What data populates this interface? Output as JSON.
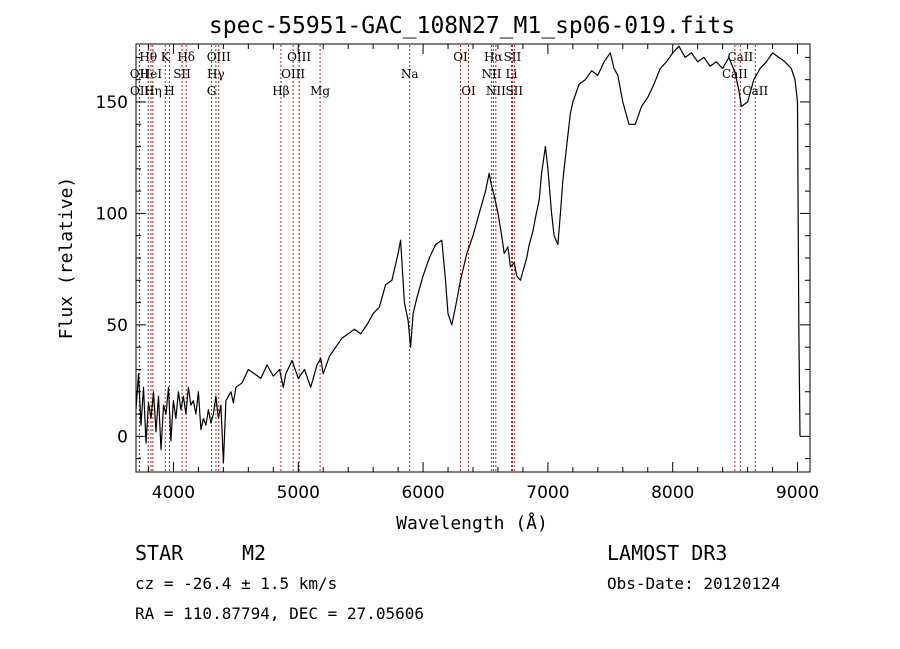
{
  "chart_data": {
    "type": "line",
    "title": "spec-55951-GAC_108N27_M1_sp06-019.fits",
    "xlabel": "Wavelength (Å)",
    "ylabel": "Flux (relative)",
    "xlim": [
      3700,
      9100
    ],
    "ylim": [
      -16,
      176
    ],
    "xticks": [
      4000,
      5000,
      6000,
      7000,
      8000,
      9000
    ],
    "yticks": [
      0,
      50,
      100,
      150
    ],
    "series": [
      {
        "name": "spectrum",
        "x": [
          3700,
          3720,
          3740,
          3760,
          3780,
          3800,
          3820,
          3840,
          3860,
          3880,
          3900,
          3920,
          3940,
          3960,
          3980,
          4000,
          4020,
          4040,
          4060,
          4080,
          4100,
          4120,
          4140,
          4160,
          4180,
          4200,
          4220,
          4240,
          4260,
          4280,
          4300,
          4320,
          4340,
          4360,
          4380,
          4400,
          4420,
          4440,
          4460,
          4480,
          4500,
          4550,
          4600,
          4650,
          4700,
          4750,
          4800,
          4850,
          4880,
          4900,
          4950,
          5000,
          5050,
          5100,
          5150,
          5180,
          5200,
          5250,
          5300,
          5350,
          5400,
          5450,
          5500,
          5550,
          5600,
          5650,
          5700,
          5750,
          5800,
          5820,
          5850,
          5880,
          5900,
          5920,
          5950,
          6000,
          6050,
          6100,
          6150,
          6180,
          6200,
          6230,
          6260,
          6300,
          6350,
          6400,
          6450,
          6500,
          6530,
          6550,
          6570,
          6600,
          6630,
          6650,
          6680,
          6700,
          6730,
          6750,
          6780,
          6800,
          6830,
          6850,
          6880,
          6900,
          6930,
          6950,
          6980,
          7000,
          7030,
          7050,
          7080,
          7100,
          7120,
          7150,
          7180,
          7200,
          7250,
          7300,
          7350,
          7400,
          7450,
          7500,
          7530,
          7560,
          7600,
          7650,
          7700,
          7750,
          7800,
          7850,
          7900,
          7950,
          8000,
          8050,
          8100,
          8150,
          8200,
          8250,
          8300,
          8350,
          8400,
          8450,
          8500,
          8530,
          8550,
          8600,
          8650,
          8700,
          8750,
          8800,
          8850,
          8900,
          8950,
          8980,
          9000,
          9010,
          9020
        ],
        "values": [
          12,
          28,
          5,
          22,
          -3,
          15,
          8,
          20,
          2,
          18,
          -6,
          14,
          10,
          22,
          -2,
          16,
          8,
          20,
          12,
          18,
          10,
          22,
          14,
          16,
          10,
          20,
          3,
          8,
          5,
          12,
          6,
          10,
          18,
          8,
          14,
          -12,
          16,
          18,
          20,
          15,
          22,
          24,
          30,
          28,
          26,
          32,
          27,
          30,
          22,
          28,
          34,
          26,
          30,
          22,
          32,
          35,
          28,
          36,
          40,
          44,
          46,
          48,
          46,
          50,
          55,
          58,
          68,
          70,
          82,
          88,
          60,
          52,
          40,
          55,
          62,
          72,
          80,
          86,
          88,
          70,
          55,
          50,
          58,
          70,
          82,
          90,
          100,
          110,
          118,
          112,
          108,
          100,
          90,
          82,
          85,
          76,
          78,
          72,
          70,
          74,
          80,
          86,
          92,
          98,
          106,
          118,
          130,
          120,
          100,
          90,
          86,
          100,
          115,
          130,
          145,
          150,
          158,
          160,
          164,
          162,
          168,
          172,
          165,
          162,
          150,
          140,
          140,
          148,
          152,
          158,
          165,
          168,
          172,
          175,
          170,
          172,
          168,
          170,
          166,
          168,
          165,
          170,
          163,
          155,
          148,
          150,
          160,
          165,
          168,
          172,
          170,
          168,
          165,
          160,
          150,
          50,
          0
        ]
      }
    ],
    "line_marks": [
      {
        "label": "Hθ",
        "row": 0,
        "x": 3798
      },
      {
        "label": "OII",
        "row": 1,
        "x": 3727
      },
      {
        "label": "OII",
        "row": 2,
        "x": 3729
      },
      {
        "label": "HeI",
        "row": 1,
        "x": 3820
      },
      {
        "label": "Hη",
        "row": 2,
        "x": 3835
      },
      {
        "label": "K",
        "row": 0,
        "x": 3934
      },
      {
        "label": "SII",
        "row": 1,
        "x": 4069
      },
      {
        "label": "H",
        "row": 2,
        "x": 3968
      },
      {
        "label": "Hδ",
        "row": 0,
        "x": 4102
      },
      {
        "label": "OIII",
        "row": 0,
        "x": 4363
      },
      {
        "label": "Hγ",
        "row": 1,
        "x": 4340
      },
      {
        "label": "G",
        "row": 2,
        "x": 4305
      },
      {
        "label": "OIII",
        "row": 0,
        "x": 5007
      },
      {
        "label": "OIII",
        "row": 1,
        "x": 4959
      },
      {
        "label": "Hβ",
        "row": 2,
        "x": 4861
      },
      {
        "label": "Mg",
        "row": 2,
        "x": 5175
      },
      {
        "label": "Na",
        "row": 1,
        "x": 5893
      },
      {
        "label": "OI",
        "row": 0,
        "x": 6300
      },
      {
        "label": "OI",
        "row": 2,
        "x": 6364
      },
      {
        "label": "Hα",
        "row": 0,
        "x": 6563
      },
      {
        "label": "SII",
        "row": 0,
        "x": 6716
      },
      {
        "label": "NII",
        "row": 1,
        "x": 6548
      },
      {
        "label": "Li",
        "row": 1,
        "x": 6708
      },
      {
        "label": "NII",
        "row": 2,
        "x": 6583
      },
      {
        "label": "SII",
        "row": 2,
        "x": 6731
      },
      {
        "label": "CaII",
        "row": 0,
        "x": 8542
      },
      {
        "label": "CaII",
        "row": 1,
        "x": 8498
      },
      {
        "label": "CaII",
        "row": 2,
        "x": 8662
      }
    ]
  },
  "info": {
    "class_label": "STAR",
    "subclass_label": "M2",
    "cz_text": "cz = -26.4 ± 1.5 km/s",
    "coords_text": "RA = 110.87794, DEC =  27.05606",
    "survey_text": "LAMOST DR3",
    "obsdate_text": "Obs-Date: 20120124"
  },
  "colors": {
    "spectrum": "#000000",
    "line_marker": "#b22222"
  }
}
